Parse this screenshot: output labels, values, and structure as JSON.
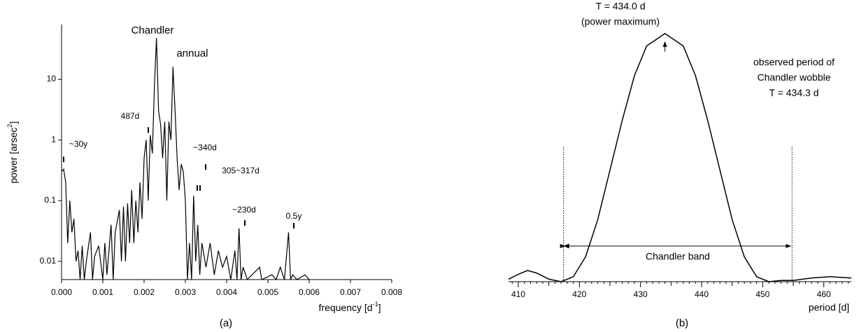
{
  "chart_data": [
    {
      "type": "line",
      "log_y": true,
      "color": "#000000",
      "x_label_parts": [
        "frequency [d",
        "-1",
        "]"
      ],
      "y_label_parts": [
        "power [arsec",
        "2",
        "]"
      ],
      "panel_label": "(a)",
      "annotations": [
        "Chandler",
        "annual",
        "487d",
        "~30y",
        "~340d",
        "305~317d",
        "~230d",
        "0.5y"
      ],
      "xlim": [
        0,
        0.008
      ],
      "xticks": [
        {
          "value": 0,
          "label": "0.000"
        },
        {
          "value": 0.001,
          "label": "0.001"
        },
        {
          "value": 0.002,
          "label": "0.002"
        },
        {
          "value": 0.003,
          "label": "0.003"
        },
        {
          "value": 0.004,
          "label": "0.004"
        },
        {
          "value": 0.005,
          "label": "0.005"
        },
        {
          "value": 0.006,
          "label": "0.006"
        },
        {
          "value": 0.007,
          "label": "0.007"
        },
        {
          "value": 0.008,
          "label": "0.008"
        }
      ],
      "ylim": [
        0.005,
        80
      ],
      "yticks": [
        0.01,
        0.1,
        1,
        10
      ],
      "x": [
        0,
        5e-05,
        0.0001,
        0.00015,
        0.0002,
        0.00025,
        0.0003,
        0.00035,
        0.0004,
        0.00045,
        0.0005,
        0.00055,
        0.0006,
        0.0007,
        0.00075,
        0.0008,
        0.0009,
        0.001,
        0.00105,
        0.0011,
        0.0012,
        0.00125,
        0.0013,
        0.0014,
        0.00145,
        0.0015,
        0.00155,
        0.0016,
        0.00165,
        0.0017,
        0.00175,
        0.0018,
        0.00185,
        0.0019,
        0.00195,
        0.002,
        0.00205,
        0.0021,
        0.00215,
        0.0022,
        0.00225,
        0.0023,
        0.00235,
        0.0024,
        0.00245,
        0.0025,
        0.00255,
        0.0026,
        0.00265,
        0.0027,
        0.00275,
        0.0028,
        0.00285,
        0.0029,
        0.00295,
        0.003,
        0.00305,
        0.0031,
        0.00315,
        0.0032,
        0.00325,
        0.0033,
        0.00335,
        0.0034,
        0.0035,
        0.0036,
        0.0037,
        0.0038,
        0.0039,
        0.004,
        0.0041,
        0.0042,
        0.00425,
        0.0043,
        0.00435,
        0.0044,
        0.0045,
        0.0048,
        0.00485,
        0.0051,
        0.0052,
        0.0053,
        0.0054,
        0.0055,
        0.00555,
        0.0056,
        0.0057,
        0.0059,
        0.006
      ],
      "values": [
        0.3,
        0.33,
        0.2,
        0.02,
        0.1,
        0.03,
        0.05,
        0.01,
        0.015,
        0.005,
        0.018,
        0.005,
        0.01,
        0.03,
        0.005,
        0.012,
        0.018,
        0.005,
        0.02,
        0.006,
        0.04,
        0.005,
        0.03,
        0.07,
        0.01,
        0.08,
        0.01,
        0.09,
        0.02,
        0.15,
        0.02,
        0.1,
        0.03,
        0.2,
        0.05,
        0.5,
        1.0,
        0.1,
        1.2,
        0.6,
        8,
        48,
        3,
        1.8,
        0.5,
        2,
        0.1,
        2,
        1,
        16,
        3,
        0.5,
        0.15,
        0.4,
        0.3,
        0.1,
        0.005,
        0.02,
        0.005,
        0.12,
        0.01,
        0.04,
        0.006,
        0.02,
        0.008,
        0.02,
        0.006,
        0.015,
        0.008,
        0.012,
        0.005,
        0.015,
        0.005,
        0.035,
        0.005,
        0.008,
        0.005,
        0.008,
        0.005,
        0.006,
        0.005,
        0.008,
        0.005,
        0.03,
        0.005,
        0.006,
        0.005,
        0.006,
        0.005
      ]
    },
    {
      "type": "line",
      "color": "#000000",
      "x_label": "period [d]",
      "panel_label": "(b)",
      "annotations": [
        "T = 434.0 d",
        "(power maximum)",
        "observed period of",
        "Chandler wobble",
        "T = 434.3 d",
        "Chandler band"
      ],
      "band_edges": [
        417.4,
        454.8
      ],
      "xlim": [
        408.4,
        464.5
      ],
      "xticks": [
        410,
        420,
        430,
        440,
        450,
        460
      ],
      "xticks_minor": [
        409,
        411,
        412,
        413,
        414,
        415,
        416,
        417,
        418,
        419,
        421,
        422,
        423,
        424,
        425,
        426,
        427,
        428,
        429,
        431,
        432,
        433,
        434,
        435,
        436,
        437,
        438,
        439,
        441,
        442,
        443,
        444,
        445,
        446,
        447,
        448,
        449,
        451,
        452,
        453,
        454,
        455,
        456,
        457,
        458,
        459,
        461,
        462,
        463,
        464
      ],
      "ylim": [
        0,
        1
      ],
      "x": [
        408.4,
        410,
        411.5,
        413,
        415,
        417,
        419,
        421,
        423,
        425,
        427,
        429,
        431,
        434,
        437,
        439,
        441,
        443,
        445,
        447,
        449,
        451,
        453,
        455,
        458,
        461,
        464.5
      ],
      "values": [
        0.01,
        0.03,
        0.045,
        0.035,
        0.01,
        0,
        0.02,
        0.1,
        0.25,
        0.45,
        0.65,
        0.83,
        0.95,
        1,
        0.95,
        0.83,
        0.65,
        0.45,
        0.25,
        0.1,
        0.02,
        0,
        0.005,
        0.005,
        0.015,
        0.02,
        0.015
      ]
    }
  ]
}
